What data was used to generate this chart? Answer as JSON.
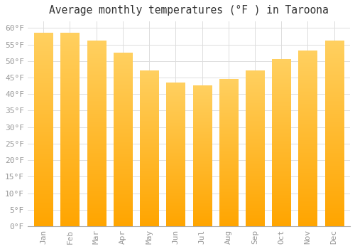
{
  "title": "Average monthly temperatures (°F ) in Taroona",
  "months": [
    "Jan",
    "Feb",
    "Mar",
    "Apr",
    "May",
    "Jun",
    "Jul",
    "Aug",
    "Sep",
    "Oct",
    "Nov",
    "Dec"
  ],
  "values": [
    58.5,
    58.5,
    56.0,
    52.5,
    47.0,
    43.5,
    42.5,
    44.5,
    47.0,
    50.5,
    53.0,
    56.0
  ],
  "bar_color": "#FFA500",
  "bar_color_light": "#FFD060",
  "background_color": "#FFFFFF",
  "plot_bg_color": "#FFFFFF",
  "grid_color": "#DDDDDD",
  "text_color": "#999999",
  "title_color": "#333333",
  "ylim": [
    0,
    62
  ],
  "yticks": [
    0,
    5,
    10,
    15,
    20,
    25,
    30,
    35,
    40,
    45,
    50,
    55,
    60
  ],
  "title_fontsize": 10.5,
  "tick_fontsize": 8
}
